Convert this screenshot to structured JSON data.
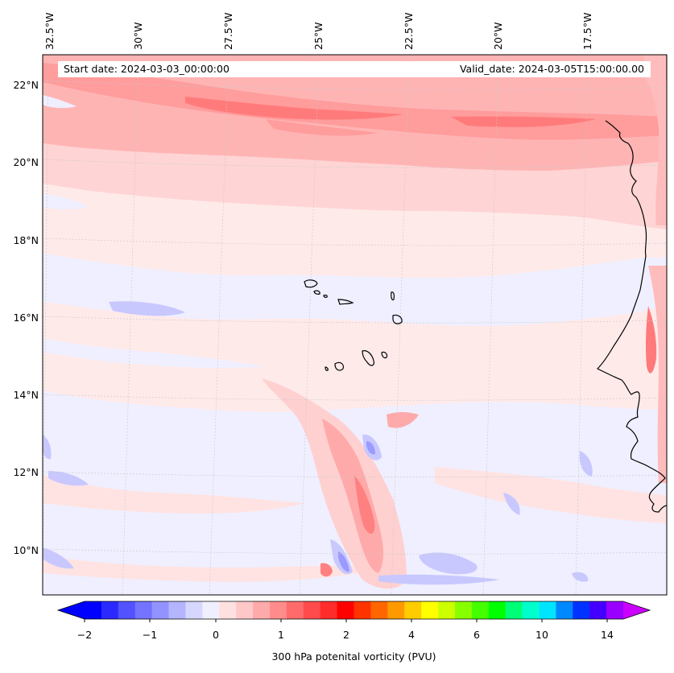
{
  "map": {
    "info_left": "Start date: 2024-03-03_00:00:00",
    "info_right": "Valid_date: 2024-03-05T15:00:00.00",
    "lon_labels": [
      "32.5°W",
      "30°W",
      "27.5°W",
      "25°W",
      "22.5°W",
      "20°W",
      "17.5°W"
    ],
    "lat_labels": [
      "22°N",
      "20°N",
      "18°N",
      "16°N",
      "14°N",
      "12°N",
      "10°N"
    ]
  },
  "colorbar": {
    "label": "300 hPa potenital vorticity (PVU)",
    "tick_labels": [
      "−2",
      "−1",
      "0",
      "1",
      "2",
      "4",
      "6",
      "10",
      "14"
    ],
    "colors": [
      "#0000ff",
      "#2a2aff",
      "#5252ff",
      "#7373ff",
      "#9393ff",
      "#b4b4ff",
      "#d6d6ff",
      "#efefff",
      "#ffe0e0",
      "#ffc8c8",
      "#ffaaaa",
      "#ff8c8c",
      "#ff6b6b",
      "#ff4b4b",
      "#ff2c2c",
      "#ff0000",
      "#ff3300",
      "#ff6600",
      "#ff9900",
      "#ffcc00",
      "#ffff00",
      "#ccff00",
      "#88ff00",
      "#44ff00",
      "#00ff00",
      "#00ff77",
      "#00ffcc",
      "#00e5ff",
      "#0088ff",
      "#0033ff",
      "#4400ff",
      "#9900ff"
    ],
    "under_color": "#0000ff",
    "over_color": "#cc00ff"
  },
  "field_colors": {
    "neg_light": "#eeeeff",
    "neg_mid": "#c6c6ff",
    "neg_strong": "#9a9aff",
    "pos_light": "#ffe6e6",
    "pos_mid": "#ffcaca",
    "pos_strong": "#ffa4a4",
    "pos_max": "#ff7676"
  }
}
